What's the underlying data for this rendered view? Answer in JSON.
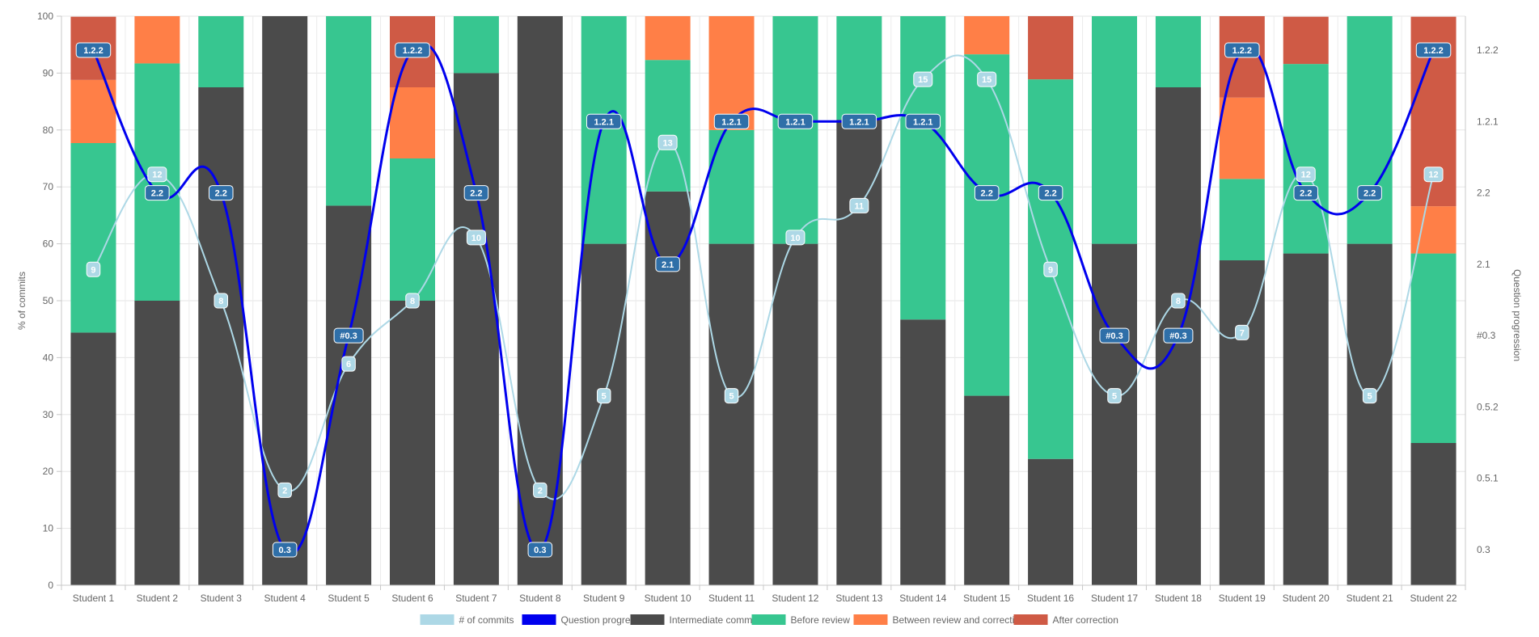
{
  "chart_data": {
    "type": "bar",
    "stacked": true,
    "categories": [
      "Student 1",
      "Student 2",
      "Student 3",
      "Student 4",
      "Student 5",
      "Student 6",
      "Student 7",
      "Student 8",
      "Student 9",
      "Student 10",
      "Student 11",
      "Student 12",
      "Student 13",
      "Student 14",
      "Student 15",
      "Student 16",
      "Student 17",
      "Student 18",
      "Student 19",
      "Student 20",
      "Student 21",
      "Student 22"
    ],
    "ylabel": "% of commits",
    "ylabel_right": "Question progression",
    "ylim": [
      0,
      100
    ],
    "y_ticks": [
      0,
      10,
      20,
      30,
      40,
      50,
      60,
      70,
      80,
      90,
      100
    ],
    "right_axis_ticks": [
      "1.2.2",
      "1.2.1",
      "2.2",
      "2.1",
      "#0.3",
      "0.5.2",
      "0.5.1",
      "0.3"
    ],
    "grid": true,
    "legend_position": "bottom",
    "series": [
      {
        "name": "Intermediate commit",
        "color": "#4b4b4b",
        "values": [
          44.4,
          50,
          87.5,
          100,
          66.7,
          50,
          90,
          100,
          60,
          69.2,
          60,
          60,
          81.8,
          46.7,
          33.3,
          22.2,
          60,
          87.5,
          57.1,
          58.3,
          60,
          25
        ]
      },
      {
        "name": "Before review",
        "color": "#37c690",
        "values": [
          33.3,
          41.7,
          12.5,
          0,
          33.3,
          25,
          10,
          0,
          40,
          23.1,
          20,
          40,
          18.2,
          53.3,
          60,
          66.7,
          40,
          12.5,
          14.3,
          33.3,
          40,
          33.3
        ]
      },
      {
        "name": "Between review and correction",
        "color": "#ff7f47",
        "values": [
          11.1,
          8.3,
          0,
          0,
          0,
          12.5,
          0,
          0,
          0,
          7.7,
          20,
          0,
          0,
          0,
          6.7,
          0,
          0,
          0,
          14.3,
          0,
          0,
          8.3
        ]
      },
      {
        "name": "After correction",
        "color": "#cf5a45",
        "values": [
          11.1,
          0,
          0,
          0,
          0,
          12.5,
          0,
          0,
          0,
          0,
          0,
          0,
          0,
          0,
          0,
          11.1,
          0,
          0,
          14.3,
          8.3,
          0,
          33.3
        ]
      }
    ],
    "lines": [
      {
        "name": "# of commits",
        "color": "#add8e6",
        "axis": "left",
        "values": [
          55.5,
          72.2,
          50,
          16.7,
          38.9,
          50,
          61.1,
          16.7,
          33.3,
          77.8,
          33.3,
          61.1,
          66.7,
          88.9,
          88.9,
          55.5,
          33.3,
          50,
          44.4,
          72.2,
          33.3,
          72.2
        ],
        "labels": [
          "9",
          "12",
          "8",
          "2",
          "6",
          "8",
          "10",
          "2",
          "5",
          "13",
          "5",
          "10",
          "11",
          "15",
          "15",
          "9",
          "5",
          "8",
          "7",
          "12",
          "5",
          "12"
        ]
      },
      {
        "name": "Question progression",
        "color": "#0000ee",
        "axis": "right",
        "values": [
          "1.2.2",
          "2.2",
          "2.2",
          "0.3",
          "#0.3",
          "1.2.2",
          "2.2",
          "0.3",
          "1.2.1",
          "2.1",
          "1.2.1",
          "1.2.1",
          "1.2.1",
          "1.2.1",
          "2.2",
          "2.2",
          "#0.3",
          "#0.3",
          "1.2.2",
          "2.2",
          "2.2",
          "1.2.2"
        ]
      }
    ]
  }
}
